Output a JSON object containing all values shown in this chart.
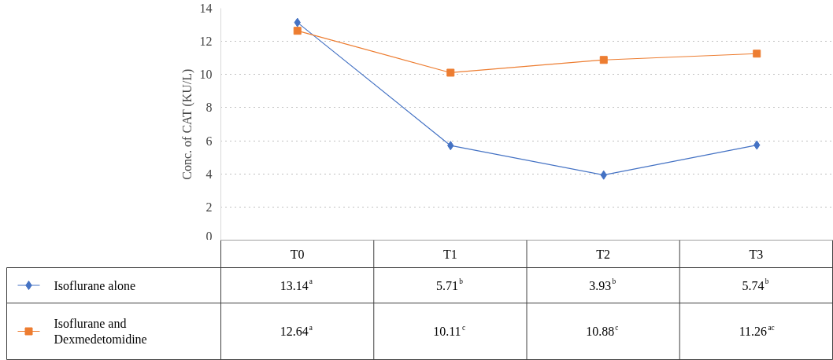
{
  "chart_data": {
    "type": "line",
    "ylabel": "Conc. of CAT (KU/L)",
    "categories": [
      "T0",
      "T1",
      "T2",
      "T3"
    ],
    "ylim": [
      0,
      14
    ],
    "yticks": [
      0,
      2,
      4,
      6,
      8,
      10,
      12,
      14
    ],
    "grid": "y",
    "legend": "bottom",
    "series": [
      {
        "name": "Isoflurane alone",
        "color": "#4472c4",
        "marker": "diamond",
        "values": [
          13.14,
          5.71,
          3.93,
          5.74
        ],
        "value_labels": [
          "13.14$^{a}$",
          "5.71$^{b}$",
          "3.93$^{b}$",
          "5.74$^{b}$"
        ]
      },
      {
        "name": "Isoflurane and Dexmedetomidine",
        "color": "#ed7d31",
        "marker": "square",
        "values": [
          12.64,
          10.11,
          10.88,
          11.26
        ],
        "value_labels": [
          "12.64$^{a}$",
          "10.11$^{c}$",
          "10.88$^{c}$",
          "11.26$^{ac}$"
        ]
      }
    ]
  }
}
